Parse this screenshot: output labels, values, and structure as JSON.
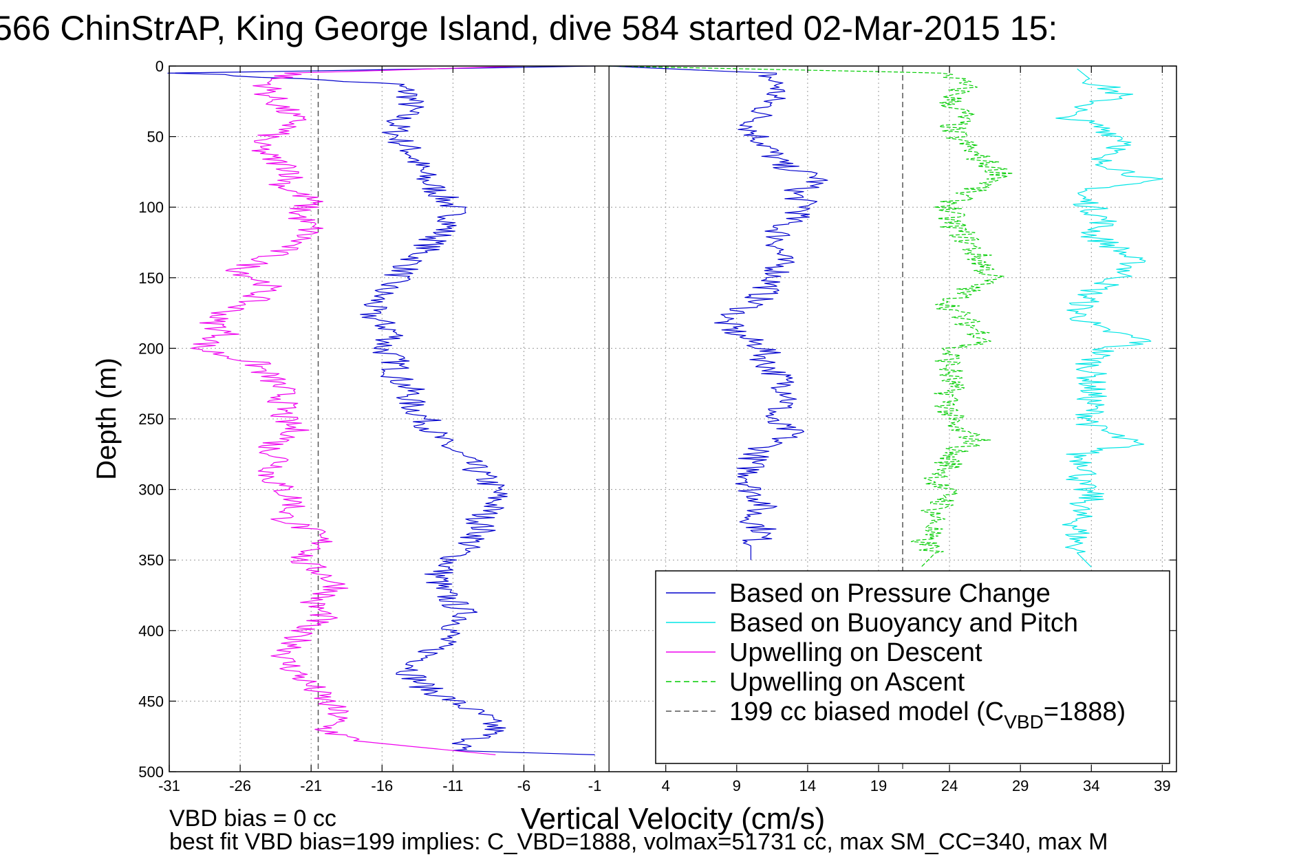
{
  "chart_data": {
    "type": "line",
    "title": "566 ChinStrAP, King George Island, dive 584 started 02-Mar-2015 15:",
    "xlabel": "Vertical Velocity (cm/s)",
    "ylabel": "Depth (m)",
    "xlim": [
      -31,
      40
    ],
    "ylim": [
      0,
      500
    ],
    "y_reversed": true,
    "grid": true,
    "x_ticks": [
      "-31",
      "-26",
      "-21",
      "-16",
      "-11",
      "-6",
      "-1",
      "4",
      "9",
      "14",
      "19",
      "24",
      "29",
      "34",
      "39"
    ],
    "y_ticks": [
      "0",
      "50",
      "100",
      "150",
      "200",
      "250",
      "300",
      "350",
      "400",
      "450",
      "500"
    ],
    "footer_line1": "VBD bias = 0 cc",
    "footer_line2": "best fit VBD bias=199 implies: C_VBD=1888, volmax=51731 cc, max SM_CC=340, max M",
    "legend": {
      "position": "lower-right",
      "entries": [
        {
          "label": "Based on Pressure Change",
          "color": "#0000cc",
          "style": "solid"
        },
        {
          "label": "Based on Buoyancy and Pitch",
          "color": "#00e5e5",
          "style": "solid"
        },
        {
          "label": "Upwelling on Descent",
          "color": "#ee00ee",
          "style": "solid"
        },
        {
          "label": "Upwelling on Ascent",
          "color": "#00cc00",
          "style": "dashed"
        },
        {
          "label": "199 cc biased model (C",
          "sub": "VBD",
          "tail": "=1888)",
          "color": "#555555",
          "style": "dashed"
        }
      ]
    },
    "zero_line_x": 0,
    "model_lines_x": [
      -20.5,
      20.7
    ],
    "series": [
      {
        "name": "Based on Pressure Change",
        "segment": "descent",
        "color": "#0000cc",
        "style": "solid",
        "points": [
          [
            -1,
            0
          ],
          [
            -30,
            5
          ],
          [
            -20,
            10
          ],
          [
            -15,
            13
          ],
          [
            -14,
            20
          ],
          [
            -14,
            30
          ],
          [
            -15,
            40
          ],
          [
            -15,
            50
          ],
          [
            -14,
            60
          ],
          [
            -13.5,
            70
          ],
          [
            -13,
            80
          ],
          [
            -12,
            90
          ],
          [
            -11,
            100
          ],
          [
            -11,
            110
          ],
          [
            -12,
            120
          ],
          [
            -13,
            130
          ],
          [
            -14,
            140
          ],
          [
            -15,
            150
          ],
          [
            -16,
            160
          ],
          [
            -17,
            175
          ],
          [
            -15,
            190
          ],
          [
            -16,
            200
          ],
          [
            -15,
            210
          ],
          [
            -15,
            220
          ],
          [
            -14,
            230
          ],
          [
            -14,
            240
          ],
          [
            -13,
            250
          ],
          [
            -12,
            265
          ],
          [
            -10,
            280
          ],
          [
            -9,
            290
          ],
          [
            -8,
            300
          ],
          [
            -8,
            310
          ],
          [
            -9,
            320
          ],
          [
            -9,
            330
          ],
          [
            -10,
            340
          ],
          [
            -11,
            350
          ],
          [
            -12,
            360
          ],
          [
            -12,
            370
          ],
          [
            -11,
            380
          ],
          [
            -10,
            390
          ],
          [
            -11,
            400
          ],
          [
            -12,
            410
          ],
          [
            -13,
            420
          ],
          [
            -14,
            430
          ],
          [
            -13,
            440
          ],
          [
            -11,
            450
          ],
          [
            -9,
            460
          ],
          [
            -8,
            470
          ],
          [
            -10,
            480
          ],
          [
            -11,
            485
          ],
          [
            -1,
            488
          ]
        ]
      },
      {
        "name": "Based on Pressure Change",
        "segment": "ascent",
        "color": "#0000cc",
        "style": "solid",
        "points": [
          [
            0,
            0
          ],
          [
            11,
            5
          ],
          [
            12,
            15
          ],
          [
            11,
            30
          ],
          [
            10,
            45
          ],
          [
            11,
            55
          ],
          [
            12,
            70
          ],
          [
            15,
            80
          ],
          [
            13,
            90
          ],
          [
            14,
            100
          ],
          [
            12,
            115
          ],
          [
            12,
            130
          ],
          [
            12,
            145
          ],
          [
            11,
            160
          ],
          [
            10,
            170
          ],
          [
            8,
            180
          ],
          [
            9,
            190
          ],
          [
            11,
            200
          ],
          [
            11,
            210
          ],
          [
            12,
            220
          ],
          [
            13,
            235
          ],
          [
            11,
            250
          ],
          [
            13,
            260
          ],
          [
            11,
            270
          ],
          [
            10,
            280
          ],
          [
            10,
            290
          ],
          [
            10,
            300
          ],
          [
            11,
            310
          ],
          [
            10,
            320
          ],
          [
            11,
            330
          ],
          [
            10,
            340
          ],
          [
            10,
            350
          ]
        ]
      },
      {
        "name": "Based on Buoyancy and Pitch",
        "segment": "ascent",
        "color": "#00e5e5",
        "style": "solid",
        "points": [
          [
            33,
            2
          ],
          [
            34,
            10
          ],
          [
            36,
            20
          ],
          [
            32,
            35
          ],
          [
            35,
            45
          ],
          [
            37,
            55
          ],
          [
            34,
            65
          ],
          [
            38,
            80
          ],
          [
            33,
            90
          ],
          [
            34,
            100
          ],
          [
            35,
            110
          ],
          [
            34,
            120
          ],
          [
            36,
            130
          ],
          [
            37,
            140
          ],
          [
            36,
            150
          ],
          [
            34,
            160
          ],
          [
            33,
            175
          ],
          [
            34,
            185
          ],
          [
            38,
            195
          ],
          [
            35,
            200
          ],
          [
            34,
            210
          ],
          [
            34,
            225
          ],
          [
            34,
            240
          ],
          [
            34,
            255
          ],
          [
            37,
            268
          ],
          [
            33,
            275
          ],
          [
            34,
            285
          ],
          [
            33,
            295
          ],
          [
            34,
            305
          ],
          [
            33,
            315
          ],
          [
            33,
            330
          ],
          [
            33,
            345
          ],
          [
            34,
            355
          ]
        ]
      },
      {
        "name": "Upwelling on Descent",
        "segment": "descent",
        "color": "#ee00ee",
        "style": "solid",
        "points": [
          [
            -6,
            0
          ],
          [
            -22,
            5
          ],
          [
            -24,
            10
          ],
          [
            -24,
            20
          ],
          [
            -23,
            30
          ],
          [
            -22,
            40
          ],
          [
            -24,
            50
          ],
          [
            -25,
            55
          ],
          [
            -24,
            65
          ],
          [
            -22,
            75
          ],
          [
            -23,
            85
          ],
          [
            -21,
            95
          ],
          [
            -22,
            105
          ],
          [
            -21,
            115
          ],
          [
            -22,
            125
          ],
          [
            -24,
            135
          ],
          [
            -26,
            145
          ],
          [
            -24,
            155
          ],
          [
            -25,
            165
          ],
          [
            -28,
            180
          ],
          [
            -27,
            190
          ],
          [
            -29,
            200
          ],
          [
            -25,
            210
          ],
          [
            -24,
            220
          ],
          [
            -23,
            230
          ],
          [
            -23,
            240
          ],
          [
            -23,
            250
          ],
          [
            -22,
            260
          ],
          [
            -24,
            270
          ],
          [
            -23,
            280
          ],
          [
            -24,
            290
          ],
          [
            -23,
            300
          ],
          [
            -22,
            310
          ],
          [
            -23,
            320
          ],
          [
            -21,
            330
          ],
          [
            -20,
            340
          ],
          [
            -22,
            350
          ],
          [
            -20,
            360
          ],
          [
            -19,
            370
          ],
          [
            -21,
            380
          ],
          [
            -20,
            390
          ],
          [
            -22,
            400
          ],
          [
            -22,
            410
          ],
          [
            -23,
            420
          ],
          [
            -22,
            430
          ],
          [
            -21,
            440
          ],
          [
            -20,
            450
          ],
          [
            -19,
            460
          ],
          [
            -20,
            470
          ],
          [
            -18,
            478
          ],
          [
            -8,
            488
          ]
        ]
      },
      {
        "name": "Upwelling on Ascent",
        "segment": "ascent",
        "color": "#00cc00",
        "style": "dashed",
        "points": [
          [
            0,
            0
          ],
          [
            24,
            5
          ],
          [
            25,
            15
          ],
          [
            24,
            25
          ],
          [
            25,
            35
          ],
          [
            24,
            45
          ],
          [
            25,
            55
          ],
          [
            26,
            65
          ],
          [
            28,
            78
          ],
          [
            25,
            90
          ],
          [
            24,
            100
          ],
          [
            24,
            110
          ],
          [
            25,
            120
          ],
          [
            26,
            135
          ],
          [
            27,
            150
          ],
          [
            25,
            160
          ],
          [
            24,
            170
          ],
          [
            25,
            180
          ],
          [
            27,
            195
          ],
          [
            24,
            200
          ],
          [
            24,
            210
          ],
          [
            24,
            225
          ],
          [
            24,
            240
          ],
          [
            24,
            255
          ],
          [
            26,
            265
          ],
          [
            24,
            275
          ],
          [
            24,
            285
          ],
          [
            23,
            295
          ],
          [
            24,
            305
          ],
          [
            23,
            315
          ],
          [
            23,
            325
          ],
          [
            22,
            335
          ],
          [
            23,
            345
          ],
          [
            22,
            355
          ]
        ]
      }
    ]
  }
}
